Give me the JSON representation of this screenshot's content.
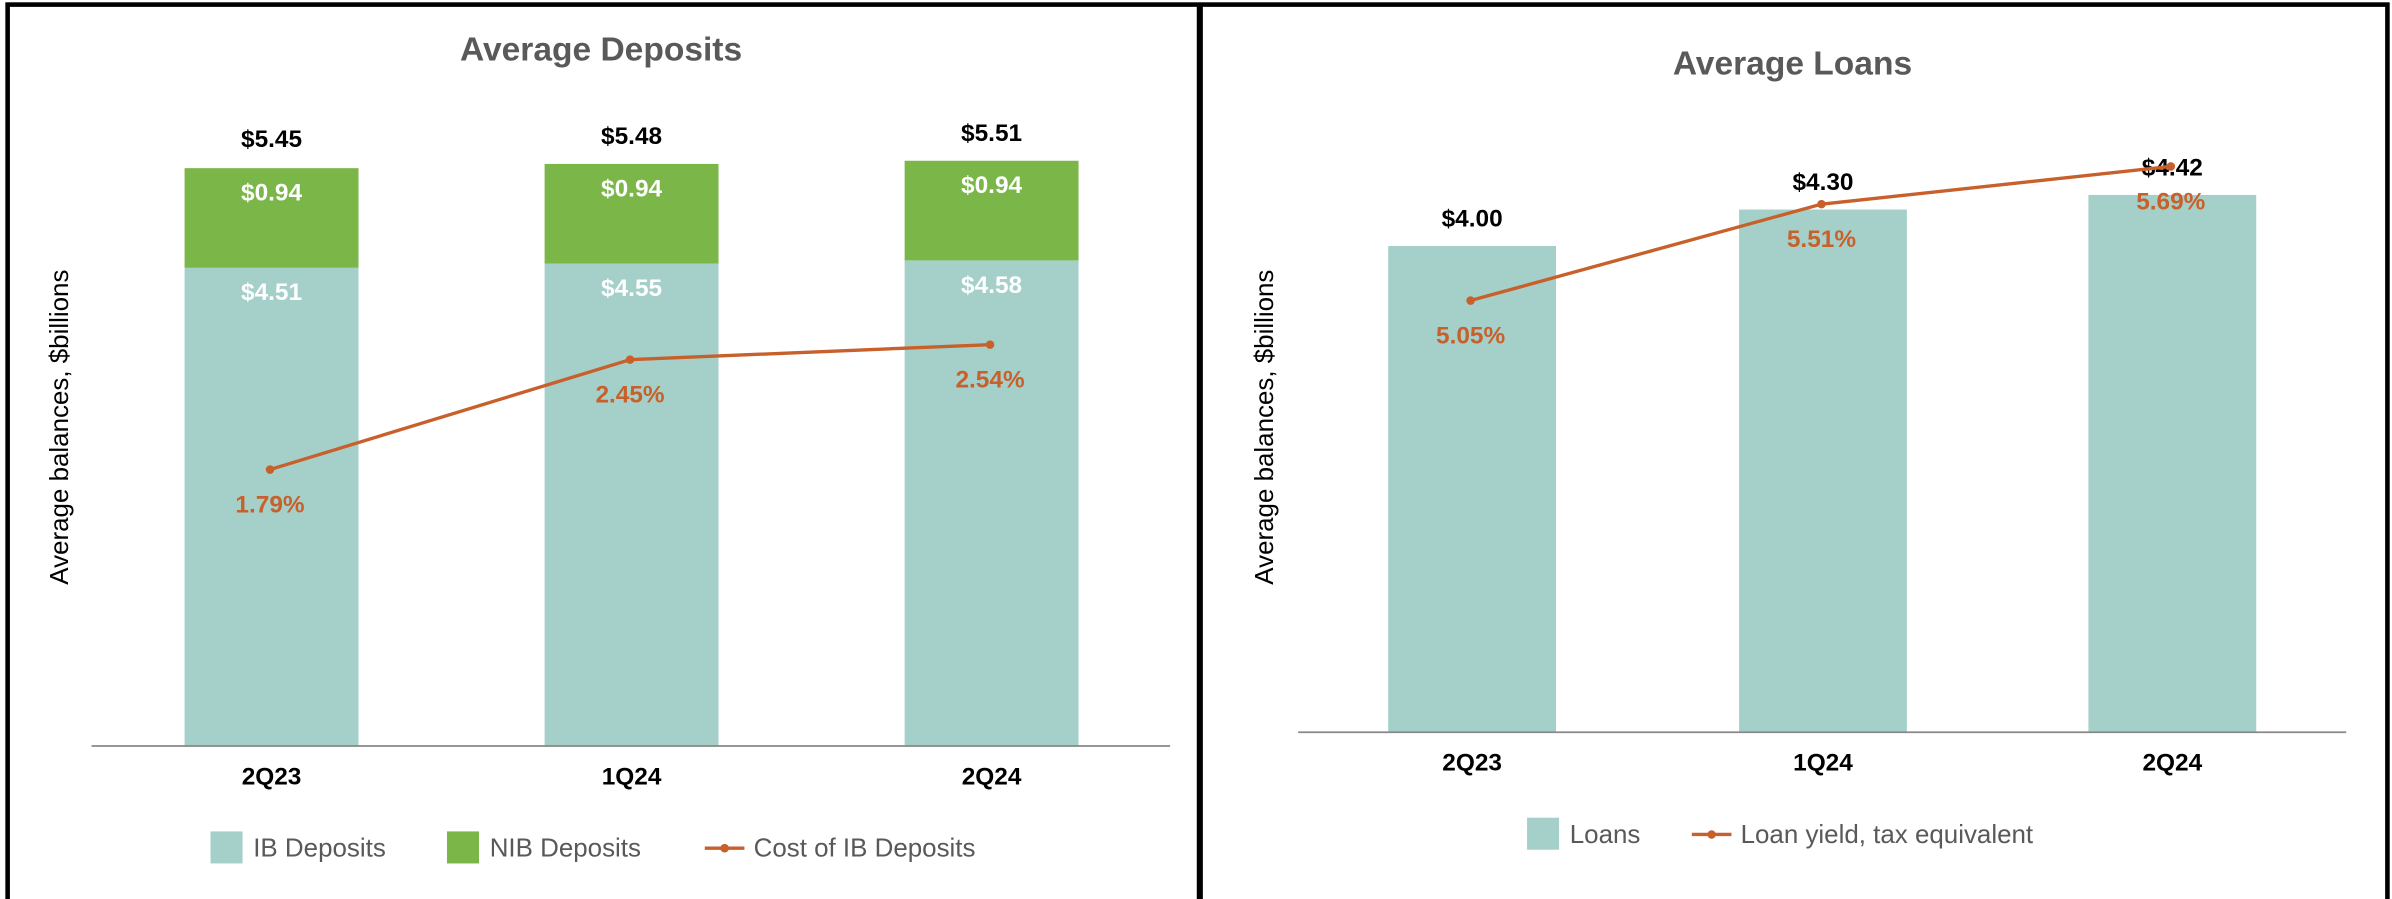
{
  "chart_data": [
    {
      "type": "bar",
      "stacked": true,
      "title": "Average Deposits",
      "y_label": "Average balances, $billions",
      "categories": [
        "2Q23",
        "1Q24",
        "2Q24"
      ],
      "ylim": [
        0,
        6
      ],
      "y2lim": [
        0.13,
        3.95
      ],
      "series": [
        {
          "name": "IB Deposits",
          "color": "#a5d0c9",
          "values": [
            4.51,
            4.55,
            4.58
          ],
          "value_labels": [
            "$4.51",
            "$4.55",
            "$4.58"
          ],
          "label_position": "inside"
        },
        {
          "name": "NIB Deposits",
          "color": "#7ab648",
          "values": [
            0.94,
            0.94,
            0.94
          ],
          "value_labels": [
            "$0.94",
            "$0.94",
            "$0.94"
          ],
          "label_position": "inside"
        },
        {
          "name": "Cost of IB Deposits",
          "type": "line",
          "axis": "y2",
          "color": "#c8602b",
          "values": [
            1.79,
            2.45,
            2.54
          ],
          "value_labels": [
            "1.79%",
            "2.45%",
            "2.54%"
          ]
        }
      ],
      "totals": [
        5.45,
        5.48,
        5.51
      ],
      "total_labels": [
        "$5.45",
        "$5.48",
        "$5.51"
      ]
    },
    {
      "type": "bar",
      "stacked": false,
      "title": "Average Loans",
      "y_label": "Average balances, $billions",
      "categories": [
        "2Q23",
        "1Q24",
        "2Q24"
      ],
      "ylim": [
        0,
        5.12
      ],
      "y2lim": [
        2.99,
        5.96
      ],
      "series": [
        {
          "name": "Loans",
          "color": "#a5d0c9",
          "values": [
            4.0,
            4.3,
            4.42
          ],
          "value_labels": [
            "$4.00",
            "$4.30",
            "$4.42"
          ],
          "label_position": "above"
        },
        {
          "name": "Loan yield, tax equivalent",
          "type": "line",
          "axis": "y2",
          "color": "#c8602b",
          "values": [
            5.05,
            5.51,
            5.69
          ],
          "value_labels": [
            "5.05%",
            "5.51%",
            "5.69%"
          ]
        }
      ]
    }
  ]
}
